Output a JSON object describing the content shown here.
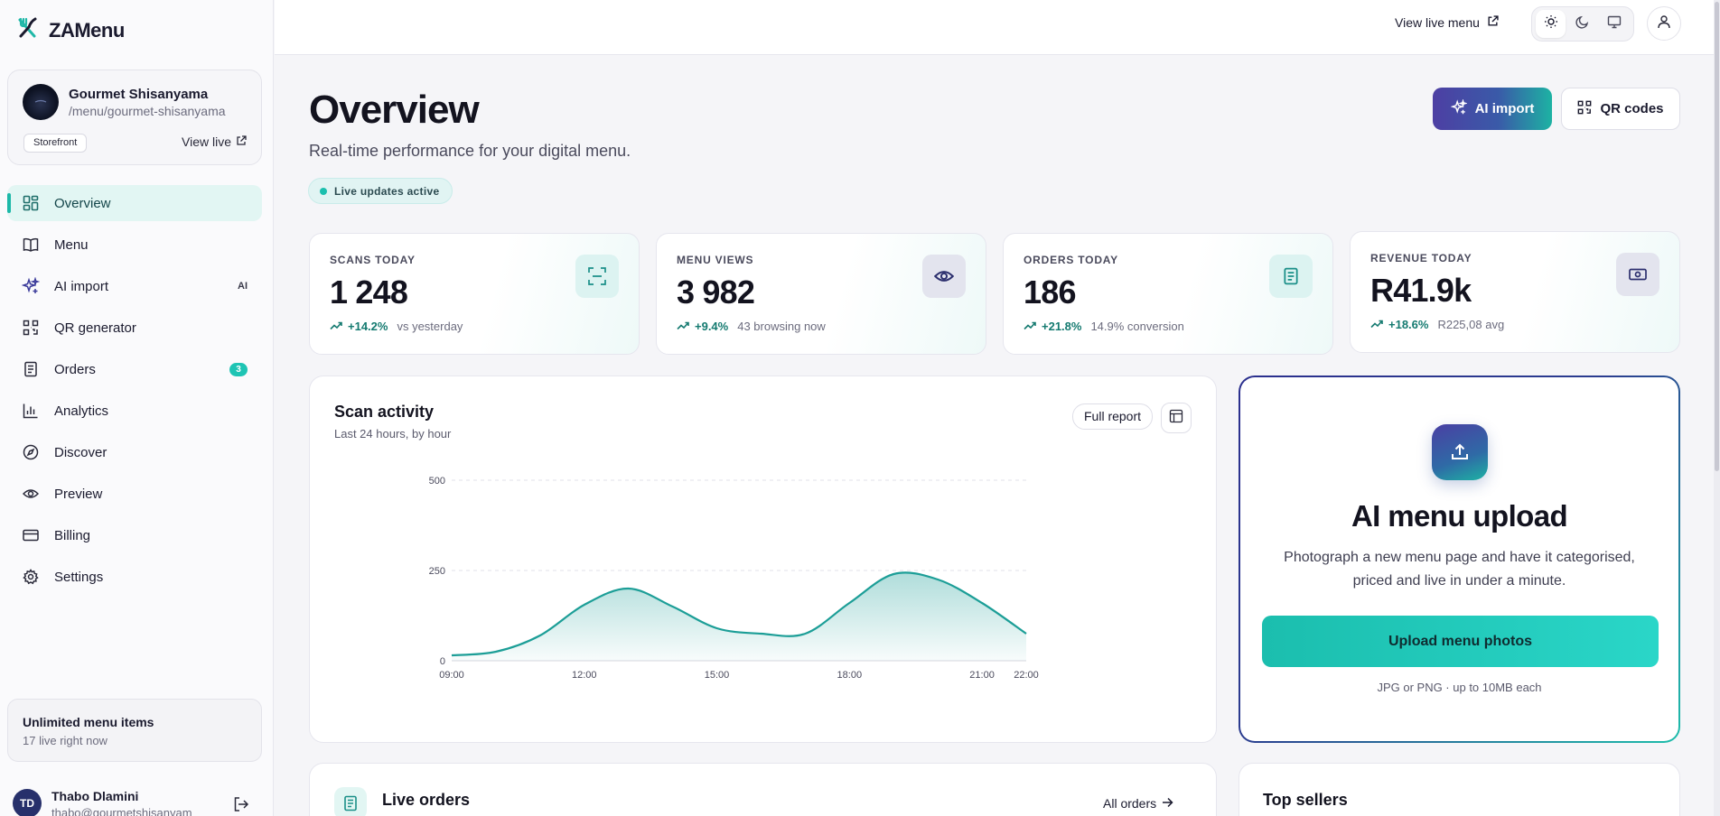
{
  "brand": {
    "name": "ZAMenu"
  },
  "store": {
    "name": "Gourmet Shisanyama",
    "slug": "/menu/gourmet-shisanyama",
    "badge": "Storefront",
    "view_live": "View live"
  },
  "nav": {
    "items": [
      {
        "label": "Overview",
        "icon": "grid-icon",
        "active": true
      },
      {
        "label": "Menu",
        "icon": "book-icon"
      },
      {
        "label": "AI import",
        "icon": "sparkles-icon",
        "tag": "AI"
      },
      {
        "label": "QR generator",
        "icon": "qr-icon"
      },
      {
        "label": "Orders",
        "icon": "receipt-icon",
        "count": "3"
      },
      {
        "label": "Analytics",
        "icon": "bar-chart-icon"
      },
      {
        "label": "Discover",
        "icon": "compass-icon"
      },
      {
        "label": "Preview",
        "icon": "eye-icon"
      },
      {
        "label": "Billing",
        "icon": "credit-card-icon"
      },
      {
        "label": "Settings",
        "icon": "gear-icon"
      }
    ]
  },
  "plan": {
    "title": "Unlimited menu items",
    "subtitle": "17 live right now"
  },
  "user": {
    "initials": "TD",
    "name": "Thabo Dlamini",
    "email": "thabo@gourmetshisanyam"
  },
  "topbar": {
    "view_live_menu": "View live menu"
  },
  "header": {
    "title": "Overview",
    "subtitle": "Real-time performance for your digital menu.",
    "live_status": "Live updates active",
    "ai_import": "AI import",
    "qr_codes": "QR codes"
  },
  "stats": [
    {
      "label": "SCANS TODAY",
      "value": "1 248",
      "pct": "+14.2%",
      "note": "vs yesterday",
      "icon": "scan-icon"
    },
    {
      "label": "MENU VIEWS",
      "value": "3 982",
      "pct": "+9.4%",
      "note": "43 browsing now",
      "icon": "eye-icon"
    },
    {
      "label": "ORDERS TODAY",
      "value": "186",
      "pct": "+21.8%",
      "note": "14.9% conversion",
      "icon": "receipt-icon"
    },
    {
      "label": "REVENUE TODAY",
      "value": "R41.9k",
      "pct": "+18.6%",
      "note": "R225,08 avg",
      "icon": "cash-icon"
    }
  ],
  "scan_activity": {
    "title": "Scan activity",
    "subtitle": "Last 24 hours, by hour",
    "full_report": "Full report"
  },
  "chart_data": {
    "type": "area",
    "x": [
      "09:00",
      "10:00",
      "11:00",
      "12:00",
      "13:00",
      "14:00",
      "15:00",
      "16:00",
      "17:00",
      "18:00",
      "19:00",
      "20:00",
      "21:00",
      "22:00"
    ],
    "values": [
      15,
      25,
      70,
      155,
      200,
      150,
      90,
      75,
      75,
      160,
      240,
      225,
      160,
      75
    ],
    "xticks": [
      "09:00",
      "12:00",
      "15:00",
      "18:00",
      "21:00",
      "22:00"
    ],
    "yticks": [
      0,
      250,
      500
    ],
    "ylim": [
      0,
      500
    ],
    "grid": true,
    "color": "#1c9e97"
  },
  "upload": {
    "title": "AI menu upload",
    "description": "Photograph a new menu page and have it categorised, priced and live in under a minute.",
    "button": "Upload menu photos",
    "note": "JPG or PNG · up to 10MB each"
  },
  "orders_panel": {
    "title": "Live orders",
    "link": "All orders"
  },
  "sellers_panel": {
    "title": "Top sellers"
  }
}
